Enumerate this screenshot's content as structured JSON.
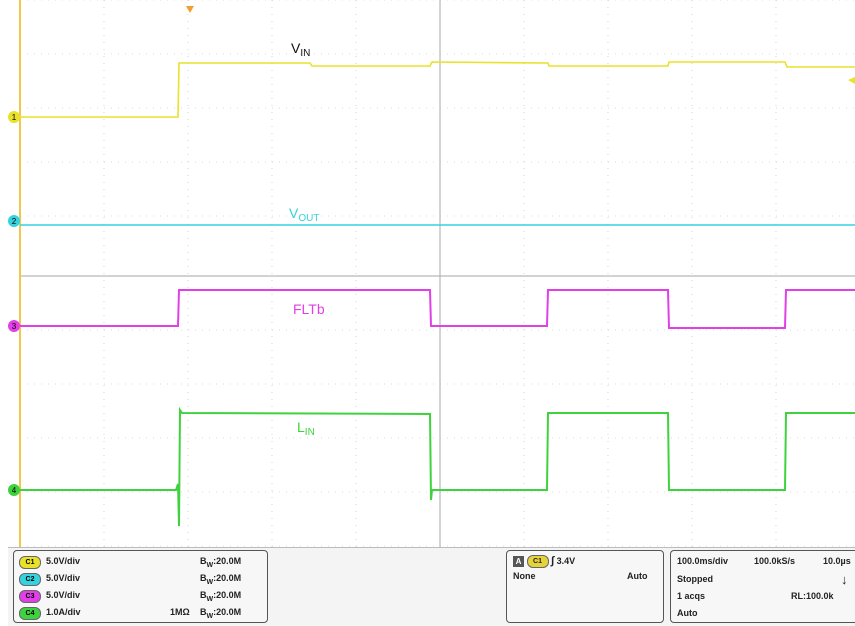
{
  "colors": {
    "ch1": "#e8e22a",
    "ch2": "#35d3df",
    "ch3": "#e040e6",
    "ch4": "#3fd23f",
    "grid": "#b7b7b7",
    "ground_rail": "#f0c84c"
  },
  "traces": {
    "vin": {
      "main": "V",
      "sub": "IN"
    },
    "vout": {
      "main": "V",
      "sub": "OUT"
    },
    "fltb": {
      "main": "FLTb"
    },
    "lin": {
      "main": "L",
      "sub": "IN"
    }
  },
  "channel_markers": [
    "1",
    "2",
    "3",
    "4"
  ],
  "channels": [
    {
      "badge": "C1",
      "scale": "5.0V/div",
      "impedance": "",
      "bandwidth_prefix": "B",
      "bandwidth_sub": "W",
      "bandwidth": ":20.0M"
    },
    {
      "badge": "C2",
      "scale": "5.0V/div",
      "impedance": "",
      "bandwidth_prefix": "B",
      "bandwidth_sub": "W",
      "bandwidth": ":20.0M"
    },
    {
      "badge": "C3",
      "scale": "5.0V/div",
      "impedance": "",
      "bandwidth_prefix": "B",
      "bandwidth_sub": "W",
      "bandwidth": ":20.0M"
    },
    {
      "badge": "C4",
      "scale": "1.0A/div",
      "impedance": "1MΩ",
      "bandwidth_prefix": "B",
      "bandwidth_sub": "W",
      "bandwidth": ":20.0M"
    }
  ],
  "trigger": {
    "mode_letter": "A",
    "source": "C1",
    "edge_glyph": "∫",
    "level": "3.4V",
    "coupling": "None",
    "sweep": "Auto"
  },
  "acquisition": {
    "timebase": "100.0ms/div",
    "sample_rate": "100.0kS/s",
    "resolution": "10.0µs",
    "state": "Stopped",
    "arrow": "↓",
    "acqs": "1 acqs",
    "record_length": "RL:100.0k",
    "mode": "Auto"
  }
}
